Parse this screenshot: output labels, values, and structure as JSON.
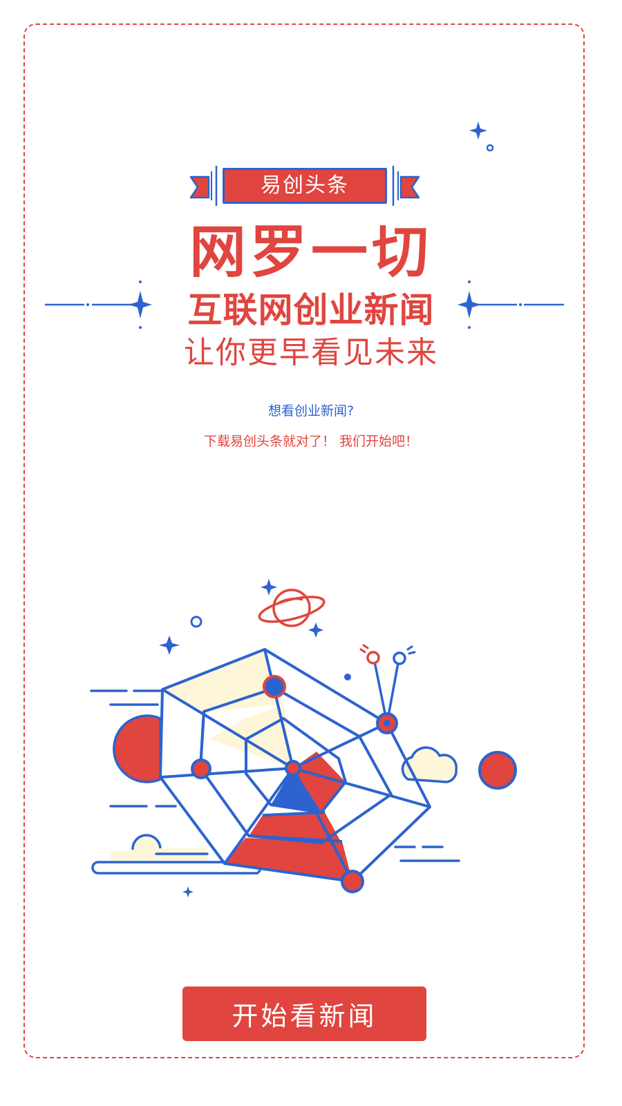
{
  "brand": {
    "badge_label": "易创头条"
  },
  "hero": {
    "headline": "网罗一切",
    "subheadline": "互联网创业新闻",
    "tagline": "让你更早看见未来"
  },
  "intro": {
    "question": "想看创业新闻?",
    "call_to_action": "下载易创头条就对了！ 我们开始吧！"
  },
  "actions": {
    "start_label": "开始看新闻"
  },
  "theme": {
    "red": "#e0453f",
    "blue": "#2c63cf",
    "cream": "#fdf6d8"
  },
  "icons": [
    "sparkle-icon",
    "planet-icon",
    "cloud-icon",
    "antenna-icon",
    "spider-web-illustration"
  ]
}
